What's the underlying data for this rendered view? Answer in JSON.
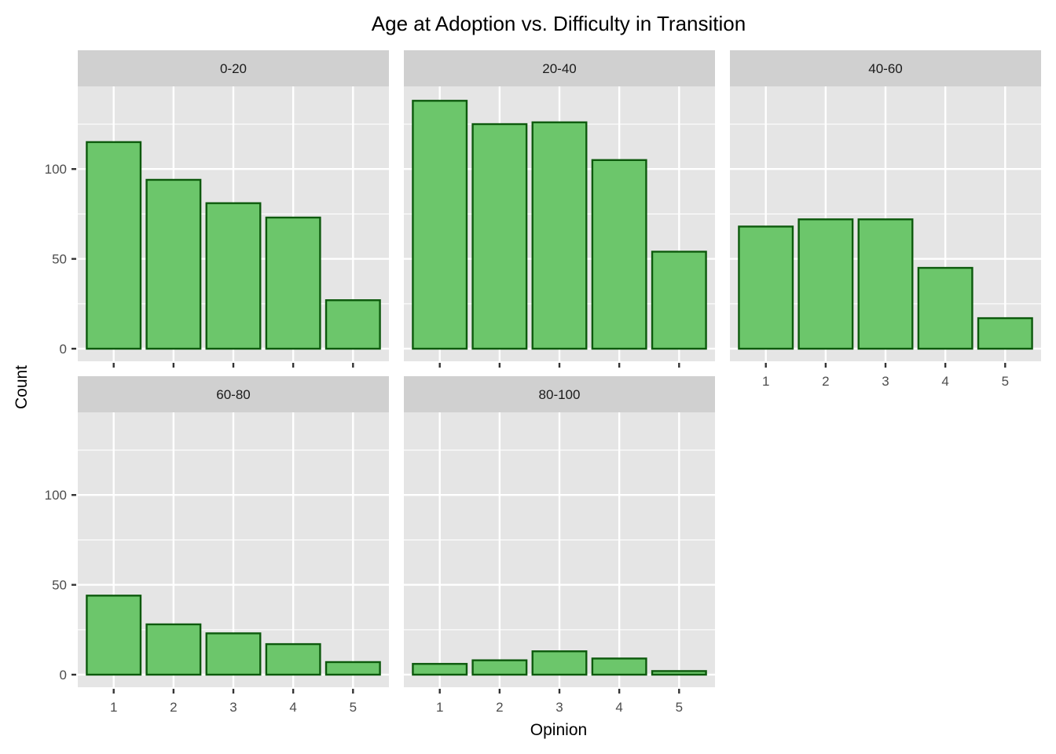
{
  "chart_data": {
    "type": "bar",
    "title": "Age at Adoption vs. Difficulty in Transition",
    "xlabel": "Opinion",
    "ylabel": "Count",
    "categories": [
      "1",
      "2",
      "3",
      "4",
      "5"
    ],
    "y_ticks": [
      0,
      50,
      100
    ],
    "ylim": [
      -7,
      146
    ],
    "grid": true,
    "facet_layout": "wrap-3-columns",
    "colors": {
      "bar_fill": "#6cc66b",
      "bar_stroke": "#0d5a0d",
      "panel_bg": "#e5e5e5",
      "strip_bg": "#d0d0d0",
      "grid": "#ffffff"
    },
    "panels": [
      {
        "label": "0-20",
        "values": [
          115,
          94,
          81,
          73,
          27
        ]
      },
      {
        "label": "20-40",
        "values": [
          138,
          125,
          126,
          105,
          54
        ]
      },
      {
        "label": "40-60",
        "values": [
          68,
          72,
          72,
          45,
          17
        ]
      },
      {
        "label": "60-80",
        "values": [
          44,
          28,
          23,
          17,
          7
        ]
      },
      {
        "label": "80-100",
        "values": [
          6,
          8,
          13,
          9,
          2
        ]
      }
    ]
  }
}
